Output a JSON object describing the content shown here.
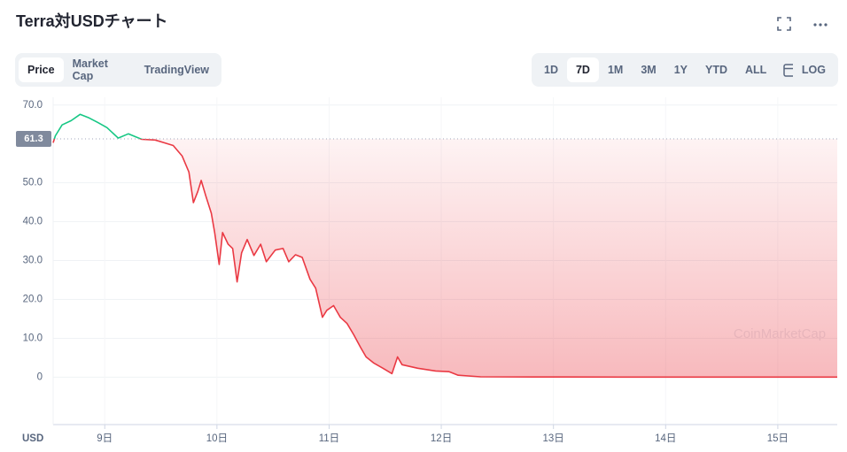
{
  "title": "Terra対USDチャート",
  "tabs": [
    "Price",
    "Market Cap",
    "TradingView"
  ],
  "active_tab": 0,
  "ranges": [
    "1D",
    "7D",
    "1M",
    "3M",
    "1Y",
    "YTD",
    "ALL"
  ],
  "active_range": 1,
  "log_button": "LOG",
  "chart_data": {
    "type": "line",
    "currency": "USD",
    "watermark": "CoinMarketCap",
    "current_price": 61.3,
    "color_up": "#16c784",
    "color_down": "#ea3943",
    "x": [
      8.54,
      8.56,
      8.62,
      8.7,
      8.78,
      8.86,
      8.94,
      9.02,
      9.12,
      9.21,
      9.33,
      9.45,
      9.53,
      9.61,
      9.69,
      9.75,
      9.79,
      9.83,
      9.86,
      9.9,
      9.95,
      9.98,
      10.02,
      10.05,
      10.1,
      10.14,
      10.18,
      10.22,
      10.27,
      10.33,
      10.39,
      10.44,
      10.52,
      10.59,
      10.64,
      10.7,
      10.76,
      10.83,
      10.88,
      10.94,
      10.98,
      11.04,
      11.1,
      11.16,
      11.22,
      11.28,
      11.33,
      11.4,
      11.48,
      11.56,
      11.61,
      11.65,
      11.79,
      11.95,
      12.07,
      12.15,
      12.35,
      12.83,
      13.62,
      14.41,
      15.53
    ],
    "series": [
      {
        "name": "Price",
        "values": [
          60.3,
          62.1,
          64.9,
          66.0,
          67.6,
          66.7,
          65.5,
          64.2,
          61.5,
          62.6,
          61.2,
          61.0,
          60.3,
          59.6,
          56.9,
          52.8,
          44.9,
          47.8,
          50.6,
          46.7,
          42.2,
          37.2,
          29.0,
          37.2,
          34.2,
          33.1,
          24.5,
          32.0,
          35.4,
          31.3,
          34.2,
          29.7,
          32.7,
          33.1,
          29.7,
          31.5,
          30.8,
          25.2,
          22.9,
          15.4,
          17.2,
          18.4,
          15.4,
          13.8,
          10.9,
          7.7,
          5.2,
          3.6,
          2.3,
          0.9,
          5.2,
          3.2,
          2.3,
          1.6,
          1.4,
          0.5,
          0.1,
          0.05,
          0.02,
          0.01,
          0.01
        ]
      }
    ],
    "xlim": [
      8.54,
      15.53
    ],
    "xticks": [
      {
        "value": 9,
        "label": "9日"
      },
      {
        "value": 10,
        "label": "10日"
      },
      {
        "value": 11,
        "label": "11日"
      },
      {
        "value": 12,
        "label": "12日"
      },
      {
        "value": 13,
        "label": "13日"
      },
      {
        "value": 14,
        "label": "14日"
      },
      {
        "value": 15,
        "label": "15日"
      }
    ],
    "ylim": [
      -12.2,
      72
    ],
    "yticks": [
      0,
      {
        "value": 10,
        "label": "10.0"
      },
      {
        "value": 20,
        "label": "20.0"
      },
      {
        "value": 30,
        "label": "30.0"
      },
      {
        "value": 40,
        "label": "40.0"
      },
      {
        "value": 50,
        "label": "50.0"
      },
      {
        "value": 70,
        "label": "70.0"
      }
    ],
    "grid": true
  }
}
